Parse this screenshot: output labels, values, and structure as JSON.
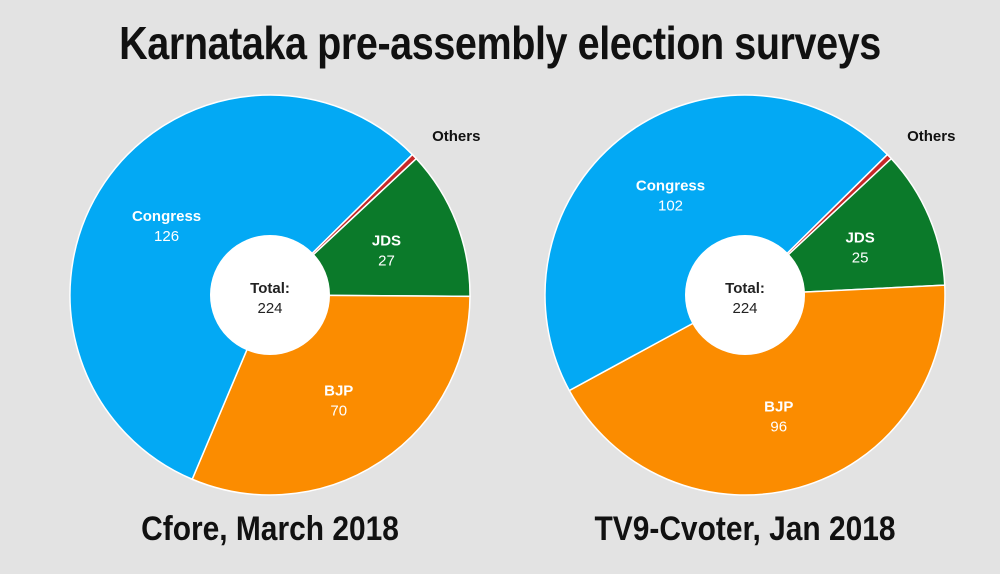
{
  "title": "Karnataka pre-assembly election surveys",
  "colors": {
    "Congress": "#03a9f4",
    "BJP": "#fb8c00",
    "JDS": "#0b7a2a",
    "Others": "#c62828"
  },
  "chart_data": [
    {
      "type": "pie",
      "style": "donut",
      "caption": "Cfore, March 2018",
      "center_label": "Total:",
      "center_value": "224",
      "slices": [
        {
          "label": "Congress",
          "value": 126
        },
        {
          "label": "BJP",
          "value": 70
        },
        {
          "label": "JDS",
          "value": 27
        },
        {
          "label": "Others",
          "value": 1
        }
      ]
    },
    {
      "type": "pie",
      "style": "donut",
      "caption": "TV9-Cvoter, Jan 2018",
      "center_label": "Total:",
      "center_value": "224",
      "slices": [
        {
          "label": "Congress",
          "value": 102
        },
        {
          "label": "BJP",
          "value": 96
        },
        {
          "label": "JDS",
          "value": 25
        },
        {
          "label": "Others",
          "value": 1
        }
      ]
    }
  ]
}
